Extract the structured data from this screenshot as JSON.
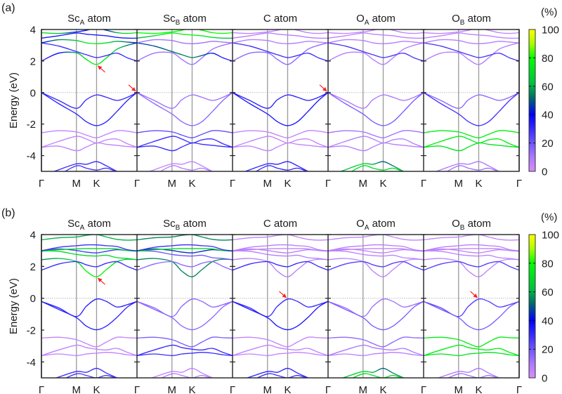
{
  "chart_data": [
    {
      "type": "line",
      "panel_label": "(a)",
      "ylabel": "Energy (eV)",
      "ylim": [
        -5,
        4
      ],
      "yticks": [
        {
          "value": 4,
          "label": "4"
        },
        {
          "value": 2,
          "label": "2"
        },
        {
          "value": 0,
          "label": "0"
        },
        {
          "value": -2,
          "label": "-2"
        },
        {
          "value": -4,
          "label": "-4"
        }
      ],
      "xticks": [
        {
          "k": 0,
          "label": "Γ"
        },
        {
          "k": 0.366,
          "label": "M"
        },
        {
          "k": 0.577,
          "label": "K"
        },
        {
          "k": 1.0,
          "label": "Γ"
        }
      ],
      "fermi_level": 0,
      "subplots": [
        {
          "base": "Sc",
          "sub": "A",
          "suffix": " atom"
        },
        {
          "base": "Sc",
          "sub": "B",
          "suffix": " atom"
        },
        {
          "base": "C",
          "sub": "",
          "suffix": " atom"
        },
        {
          "base": "O",
          "sub": "A",
          "suffix": " atom"
        },
        {
          "base": "O",
          "sub": "B",
          "suffix": " atom"
        }
      ],
      "k_nodes": [
        0,
        0.18,
        0.366,
        0.47,
        0.577,
        0.68,
        0.79,
        0.9,
        1.0
      ],
      "bands": [
        {
          "name": "v1",
          "energies": [
            0,
            -0.5,
            -1.0,
            -0.45,
            -0.15,
            -0.3,
            -0.5,
            -0.3,
            0
          ],
          "weights": [
            30,
            12,
            32,
            10,
            15
          ]
        },
        {
          "name": "v2",
          "energies": [
            0,
            -0.7,
            -1.36,
            -1.85,
            -2.1,
            -1.85,
            -1.2,
            -0.5,
            0
          ],
          "weights": [
            32,
            15,
            35,
            18,
            28
          ]
        },
        {
          "name": "l1",
          "energies": [
            -2.55,
            -2.42,
            -2.5,
            -2.7,
            -2.87,
            -2.65,
            -2.42,
            -2.45,
            -2.55
          ],
          "weights": [
            5,
            22,
            5,
            12,
            75
          ]
        },
        {
          "name": "l2",
          "energies": [
            -3.47,
            -3.1,
            -2.78,
            -2.95,
            -3.2,
            -3.0,
            -2.95,
            -3.25,
            -3.47
          ],
          "weights": [
            5,
            30,
            5,
            8,
            75
          ]
        },
        {
          "name": "l3",
          "energies": [
            -3.47,
            -3.4,
            -3.69,
            -3.45,
            -3.2,
            -3.28,
            -3.35,
            -3.42,
            -3.47
          ],
          "weights": [
            6,
            30,
            5,
            8,
            72
          ]
        },
        {
          "name": "b1",
          "energies": [
            -5.3,
            -4.9,
            -4.52,
            -4.55,
            -4.38,
            -4.65,
            -5.0,
            -5.3,
            -5.5
          ],
          "weights": [
            30,
            5,
            32,
            [
              60,
              62,
              70,
              60,
              50,
              55,
              60,
              62,
              62
            ],
            10
          ]
        },
        {
          "name": "b2",
          "energies": [
            -5.5,
            -5.2,
            -4.65,
            -4.8,
            -4.92,
            -4.8,
            -5.05,
            -5.4,
            -5.6
          ],
          "weights": [
            28,
            8,
            30,
            70,
            12
          ]
        },
        {
          "name": "c1",
          "energies": [
            2.0,
            2.5,
            2.52,
            2.1,
            1.78,
            2.2,
            2.75,
            3.0,
            3.15
          ],
          "weights": [
            [
              30,
              40,
              60,
              72,
              80,
              72,
              62,
              55,
              50
            ],
            12,
            15,
            8,
            8
          ]
        },
        {
          "name": "c2",
          "energies": [
            3.15,
            2.95,
            2.6,
            2.4,
            2.22,
            2.35,
            2.5,
            2.2,
            2.0
          ],
          "weights": [
            30,
            [
              45,
              48,
              52,
              55,
              55,
              50,
              42,
              35,
              30
            ],
            30,
            28,
            28
          ]
        },
        {
          "name": "c3",
          "energies": [
            3.15,
            3.35,
            3.3,
            3.15,
            3.1,
            3.15,
            3.25,
            3.2,
            3.15
          ],
          "weights": [
            [
              40,
              55,
              65,
              75,
              78,
              70,
              60,
              50,
              40
            ],
            12,
            8,
            8,
            8
          ]
        },
        {
          "name": "c4",
          "energies": [
            3.45,
            3.6,
            3.78,
            3.7,
            3.65,
            3.6,
            3.5,
            3.45,
            3.45
          ],
          "weights": [
            35,
            [
              60,
              70,
              75,
              78,
              80,
              75,
              70,
              65,
              60
            ],
            8,
            6,
            6
          ]
        },
        {
          "name": "c5",
          "energies": [
            3.8,
            3.75,
            3.85,
            3.95,
            4.1,
            3.95,
            3.8,
            3.75,
            3.8
          ],
          "weights": [
            [
              72,
              65,
              45,
              40,
              40,
              45,
              60,
              70,
              72
            ],
            80,
            6,
            5,
            5
          ]
        }
      ],
      "annotations": [
        {
          "type": "arrow",
          "color": "#ff2020",
          "panel": 0,
          "k": 0.577,
          "E": 1.78,
          "from": "lower-right"
        },
        {
          "type": "arrow",
          "color": "#ff2020",
          "panel": 0,
          "k": 1.0,
          "E": 0,
          "from": "upper-left"
        },
        {
          "type": "arrow",
          "color": "#ff2020",
          "panel": 2,
          "k": 1.0,
          "E": 0,
          "from": "upper-left"
        }
      ]
    },
    {
      "type": "line",
      "panel_label": "(b)",
      "ylabel": "Energy (eV)",
      "ylim": [
        -5,
        4
      ],
      "yticks": [
        {
          "value": 4,
          "label": "4"
        },
        {
          "value": 2,
          "label": "2"
        },
        {
          "value": 0,
          "label": "0"
        },
        {
          "value": -2,
          "label": "-2"
        },
        {
          "value": -4,
          "label": "-4"
        }
      ],
      "xticks": [
        {
          "k": 0,
          "label": "Γ"
        },
        {
          "k": 0.366,
          "label": "M"
        },
        {
          "k": 0.577,
          "label": "K"
        },
        {
          "k": 1.0,
          "label": "Γ"
        }
      ],
      "fermi_level": 0,
      "subplots": [
        {
          "base": "Sc",
          "sub": "A",
          "suffix": " atom"
        },
        {
          "base": "Sc",
          "sub": "B",
          "suffix": " atom"
        },
        {
          "base": "C",
          "sub": "",
          "suffix": " atom"
        },
        {
          "base": "O",
          "sub": "A",
          "suffix": " atom"
        },
        {
          "base": "O",
          "sub": "B",
          "suffix": " atom"
        }
      ],
      "k_nodes": [
        0,
        0.18,
        0.366,
        0.47,
        0.577,
        0.68,
        0.79,
        0.9,
        1.0
      ],
      "bands": [
        {
          "name": "v1",
          "energies": [
            -0.2,
            -0.6,
            -1.15,
            -0.5,
            -0.05,
            -0.2,
            -0.55,
            -0.4,
            -0.2
          ],
          "weights": [
            32,
            15,
            30,
            12,
            25
          ]
        },
        {
          "name": "v2",
          "energies": [
            -0.2,
            -0.7,
            -1.22,
            -1.75,
            -1.98,
            -1.75,
            -1.2,
            -0.55,
            -0.2
          ],
          "weights": [
            32,
            15,
            35,
            18,
            18
          ]
        },
        {
          "name": "l1",
          "energies": [
            -2.5,
            -2.45,
            -2.6,
            -2.85,
            -3.05,
            -2.75,
            -2.45,
            -2.48,
            -2.5
          ],
          "weights": [
            5,
            18,
            5,
            15,
            75
          ]
        },
        {
          "name": "l2",
          "energies": [
            -3.6,
            -3.25,
            -2.95,
            -3.1,
            -3.2,
            -3.25,
            -3.15,
            -3.4,
            -3.6
          ],
          "weights": [
            6,
            30,
            5,
            10,
            75
          ]
        },
        {
          "name": "l3",
          "energies": [
            -3.6,
            -3.5,
            -3.6,
            -3.5,
            -3.45,
            -3.4,
            -3.45,
            -3.55,
            -3.6
          ],
          "weights": [
            6,
            30,
            5,
            8,
            72
          ]
        },
        {
          "name": "b1",
          "energies": [
            -5.3,
            -4.95,
            -4.6,
            -4.65,
            -4.4,
            -4.7,
            -5.0,
            -5.3,
            -5.5
          ],
          "weights": [
            30,
            5,
            32,
            [
              60,
              62,
              70,
              60,
              50,
              55,
              60,
              62,
              62
            ],
            10
          ]
        },
        {
          "name": "b2",
          "energies": [
            -5.5,
            -5.2,
            -4.75,
            -4.85,
            -5.0,
            -4.85,
            -5.05,
            -5.4,
            -5.6
          ],
          "weights": [
            28,
            8,
            30,
            70,
            12
          ]
        },
        {
          "name": "c1",
          "energies": [
            2.42,
            2.5,
            2.3,
            1.7,
            1.35,
            1.8,
            2.3,
            2.45,
            2.42
          ],
          "weights": [
            [
              55,
              60,
              70,
              75,
              78,
              75,
              68,
              60,
              55
            ],
            55,
            8,
            6,
            6
          ]
        },
        {
          "name": "c2",
          "energies": [
            1.76,
            2.15,
            2.3,
            2.1,
            1.98,
            2.2,
            2.3,
            2.0,
            1.76
          ],
          "weights": [
            30,
            15,
            30,
            25,
            25
          ]
        },
        {
          "name": "c3",
          "energies": [
            2.98,
            2.95,
            2.75,
            2.68,
            2.65,
            2.7,
            2.55,
            2.5,
            2.42
          ],
          "weights": [
            70,
            20,
            8,
            6,
            6
          ]
        },
        {
          "name": "c4",
          "energies": [
            2.98,
            3.1,
            3.0,
            2.9,
            2.85,
            2.95,
            3.05,
            3.0,
            2.98
          ],
          "weights": [
            28,
            45,
            8,
            6,
            6
          ]
        },
        {
          "name": "c5",
          "energies": [
            2.95,
            3.05,
            3.1,
            3.12,
            3.12,
            3.12,
            3.1,
            3.0,
            2.95
          ],
          "weights": [
            70,
            70,
            5,
            5,
            5
          ]
        },
        {
          "name": "c6",
          "energies": [
            3.67,
            3.8,
            3.85,
            3.95,
            4.0,
            3.85,
            3.7,
            3.65,
            3.67
          ],
          "weights": [
            60,
            55,
            6,
            5,
            5
          ]
        },
        {
          "name": "c7",
          "energies": [
            2.98,
            3.2,
            3.3,
            3.35,
            3.35,
            3.3,
            3.25,
            3.05,
            2.98
          ],
          "weights": [
            30,
            30,
            8,
            8,
            8
          ]
        }
      ],
      "annotations": [
        {
          "type": "arrow",
          "color": "#ff2020",
          "panel": 0,
          "k": 0.577,
          "E": 1.35,
          "from": "lower-right"
        },
        {
          "type": "arrow",
          "color": "#ff2020",
          "panel": 2,
          "k": 0.577,
          "E": -0.05,
          "from": "upper-left"
        },
        {
          "type": "arrow",
          "color": "#ff2020",
          "panel": 4,
          "k": 0.577,
          "E": -0.05,
          "from": "upper-left"
        }
      ]
    }
  ],
  "colorbar": {
    "label": "(%)",
    "range": [
      0,
      100
    ],
    "ticks": [
      {
        "value": 100,
        "label": "100"
      },
      {
        "value": 80,
        "label": "80"
      },
      {
        "value": 60,
        "label": "60"
      },
      {
        "value": 40,
        "label": "40"
      },
      {
        "value": 20,
        "label": "20"
      },
      {
        "value": 0,
        "label": "0"
      }
    ],
    "colormap": [
      {
        "value": 0,
        "color": "#d98cff"
      },
      {
        "value": 10,
        "color": "#ad78ff"
      },
      {
        "value": 20,
        "color": "#6f55ff"
      },
      {
        "value": 40,
        "color": "#0000ff"
      },
      {
        "value": 52,
        "color": "#006a6a"
      },
      {
        "value": 62,
        "color": "#00c040"
      },
      {
        "value": 80,
        "color": "#00ff00"
      },
      {
        "value": 90,
        "color": "#aaff00"
      },
      {
        "value": 100,
        "color": "#ffff00"
      }
    ]
  },
  "colors": {
    "frame": "#222222",
    "kpath_line": "#9a9a9a",
    "fermi_line": "#bdbdbd"
  }
}
